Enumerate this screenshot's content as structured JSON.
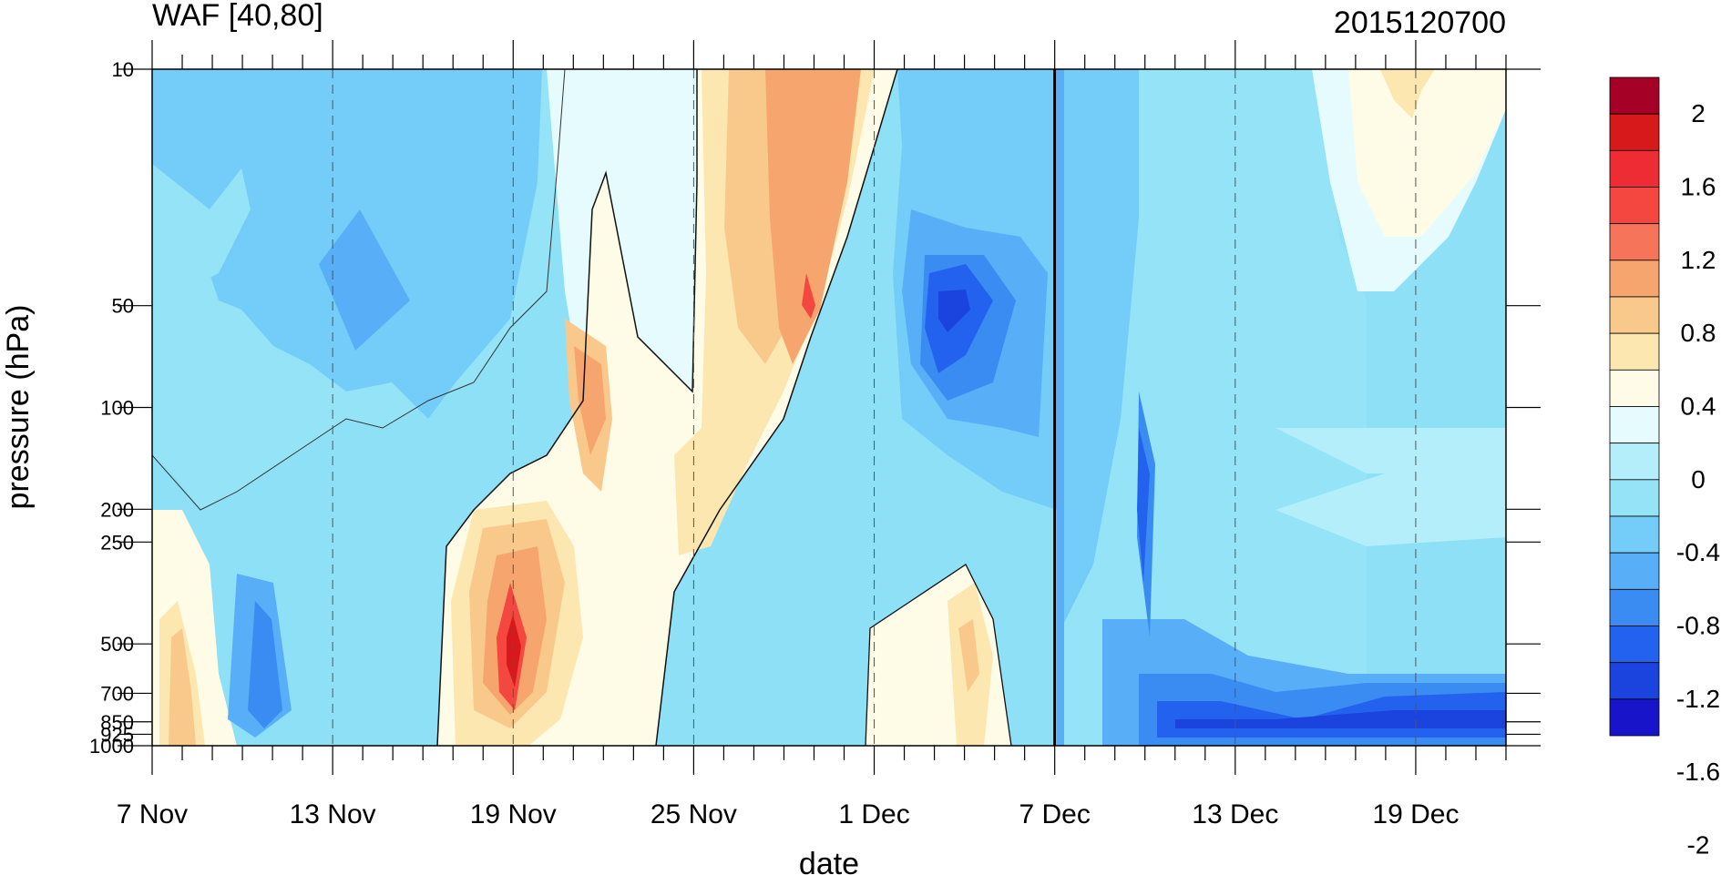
{
  "chart_data": {
    "type": "heatmap",
    "title_left": "WAF [40,80]",
    "title_right": "2015120700",
    "xlabel": "date",
    "ylabel": "pressure (hPa)",
    "x_tick_labels": [
      "7 Nov",
      "13 Nov",
      "19 Nov",
      "25 Nov",
      "1 Dec",
      "7 Dec",
      "13 Dec",
      "19 Dec"
    ],
    "x_major_day_index": [
      0,
      6,
      12,
      18,
      24,
      30,
      36,
      42
    ],
    "x_range_days": [
      0,
      45
    ],
    "y_tick_labels": [
      "10",
      "50",
      "100",
      "200",
      "250",
      "500",
      "700",
      "850",
      "925",
      "1000"
    ],
    "y_tick_values": [
      10,
      50,
      100,
      200,
      250,
      500,
      700,
      850,
      925,
      1000
    ],
    "y_range": [
      10,
      1000
    ],
    "y_scale": "log (inverted)",
    "reference_line_day_index": 30,
    "colorbar_labels": [
      "2",
      "1.6",
      "1.2",
      "0.8",
      "0.4",
      "0",
      "-0.4",
      "-0.8",
      "-1.2",
      "-1.6",
      "-2"
    ],
    "colorbar_colors": [
      "#a50026",
      "#d7191c",
      "#ee2c33",
      "#f4473f",
      "#f67459",
      "#f7a56f",
      "#f9c98c",
      "#fce7b1",
      "#fefbe7",
      "#e6fbfd",
      "#b4eefa",
      "#95e3f7",
      "#74cdf9",
      "#58aef7",
      "#3a8cf3",
      "#2362ef",
      "#1a44dd",
      "#1814c9"
    ],
    "grid": "dashed vertical lines at date ticks",
    "legend": "colorbar on right"
  }
}
